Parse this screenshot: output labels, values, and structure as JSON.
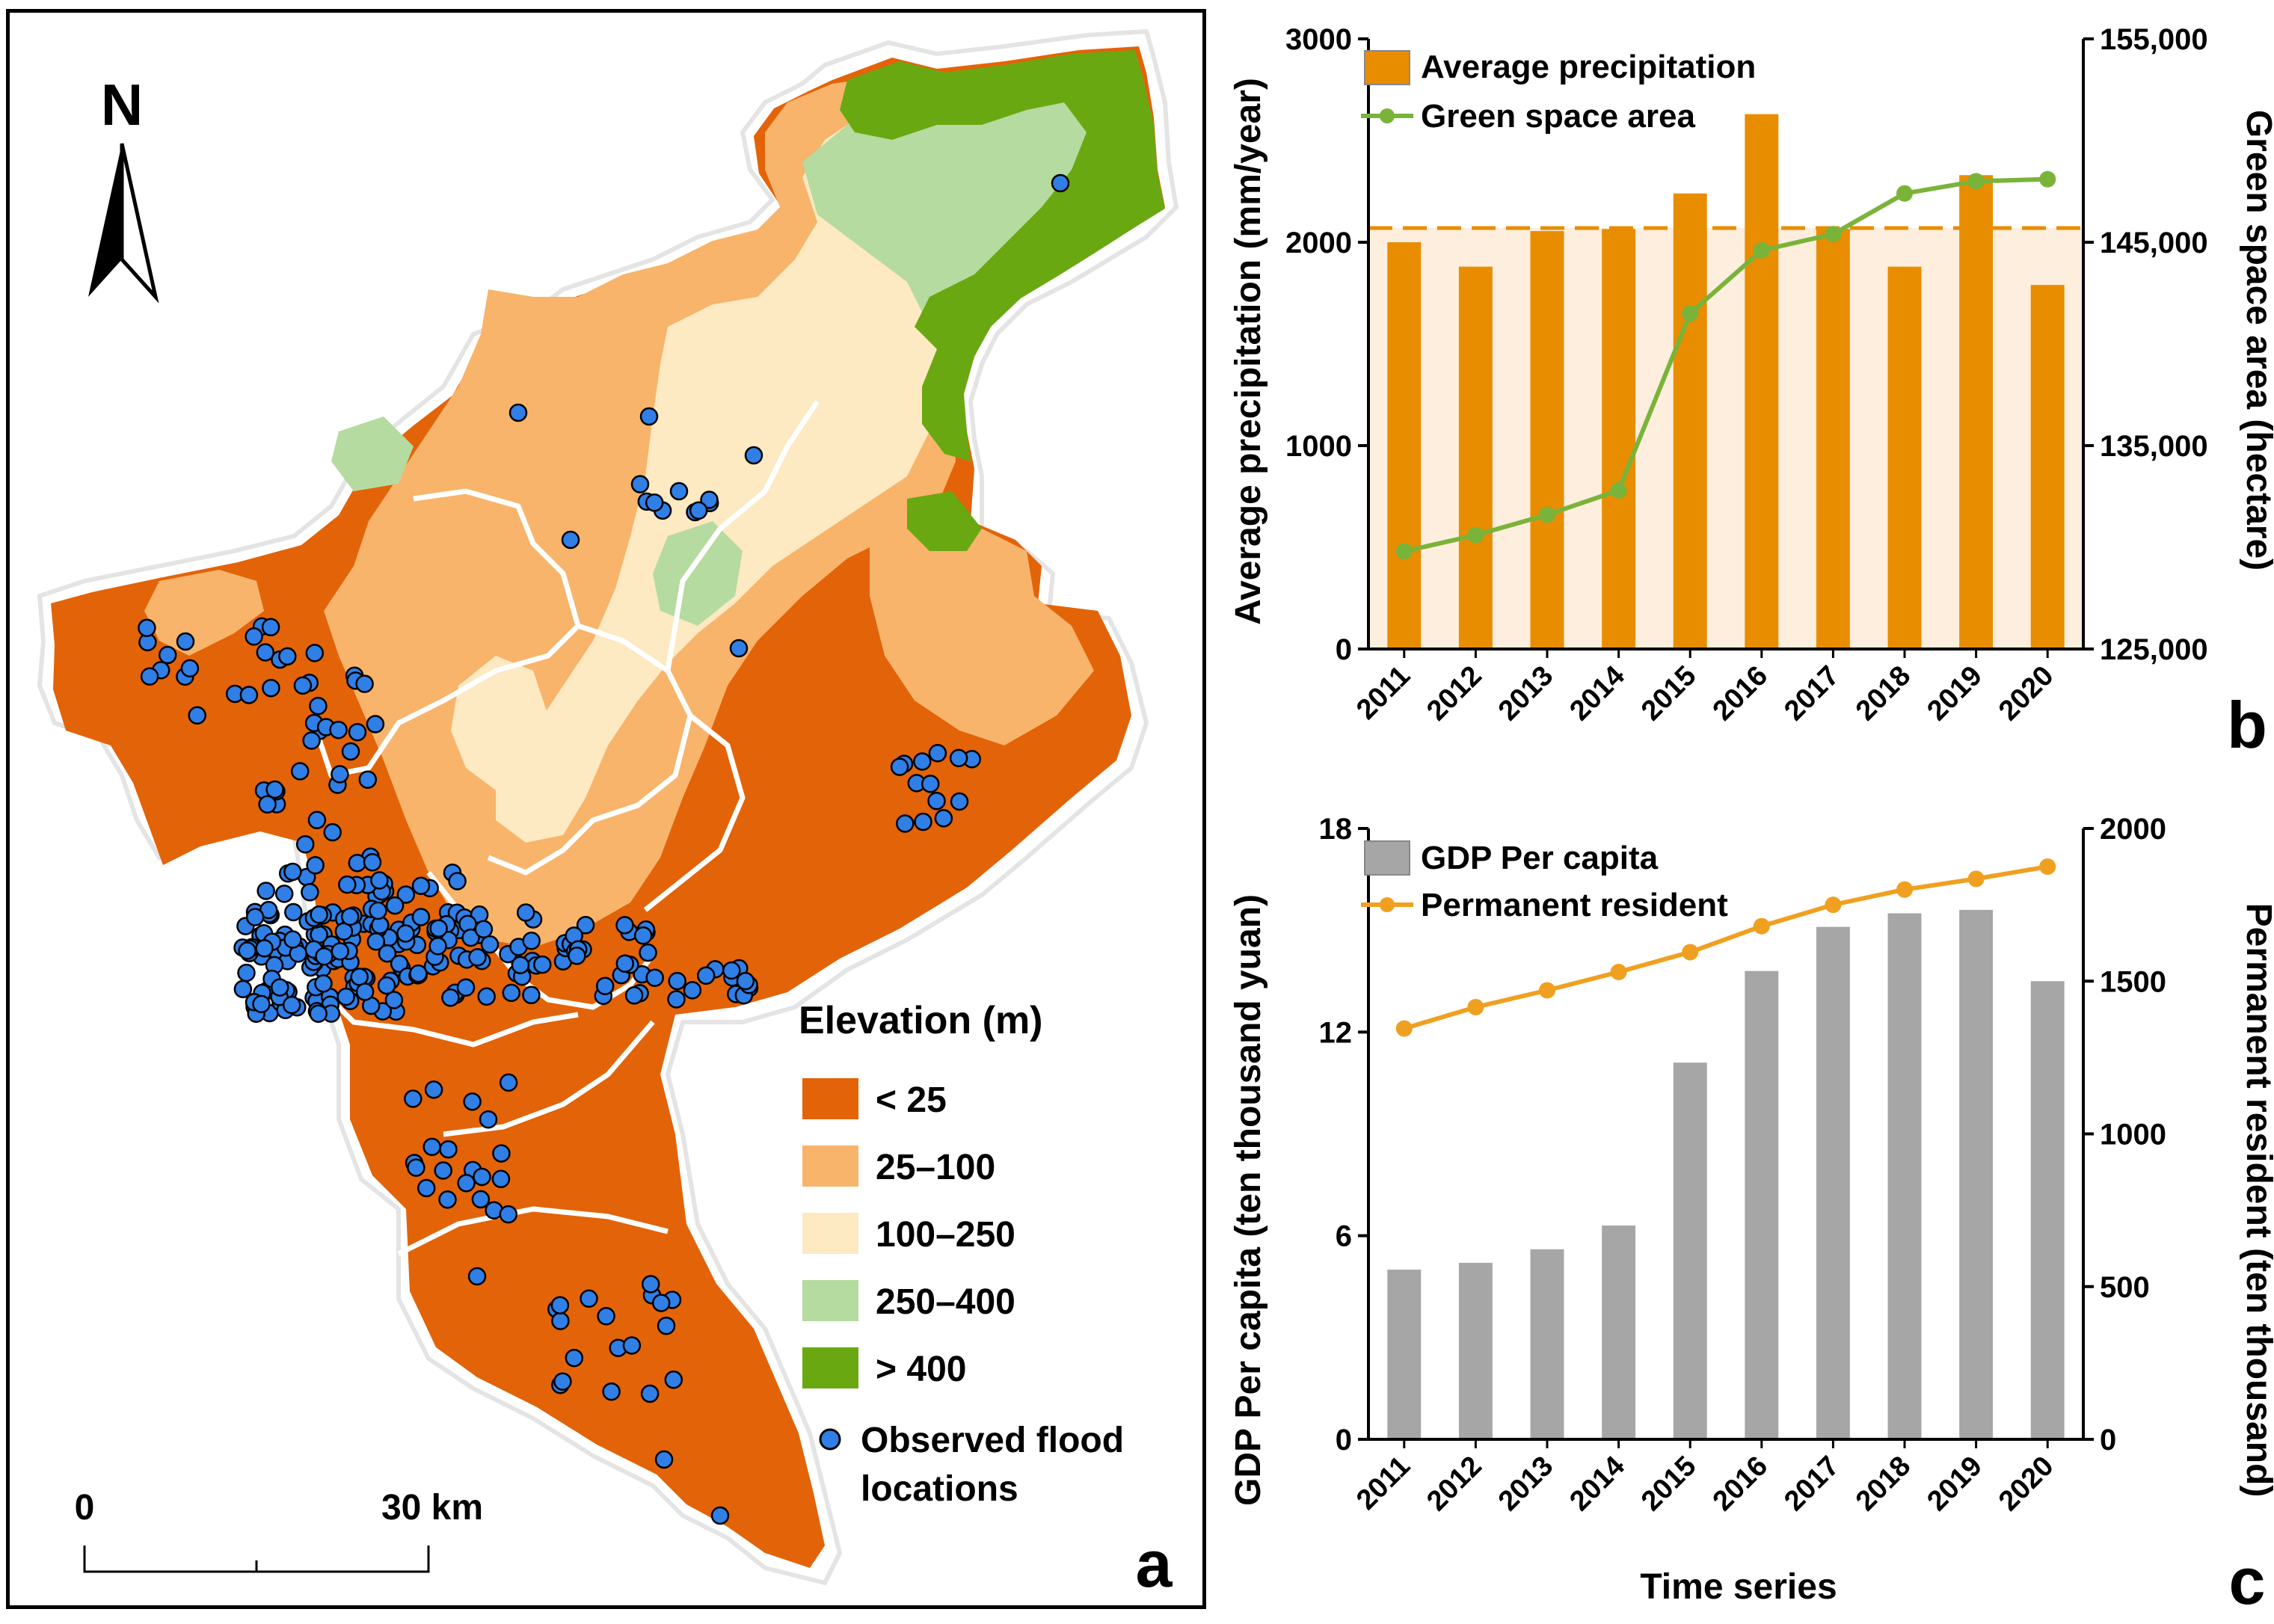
{
  "map": {
    "north_label": "N",
    "panel_label": "a",
    "legend": {
      "title": "Elevation (m)",
      "classes": [
        {
          "label": "< 25",
          "color": "#e36309"
        },
        {
          "label": "25–100",
          "color": "#f8b46a"
        },
        {
          "label": "100–250",
          "color": "#fde9c2"
        },
        {
          "label": "250–400",
          "color": "#b5dba0"
        },
        {
          "label": "> 400",
          "color": "#6aa812"
        }
      ],
      "flood_label_line1": "Observed flood",
      "flood_label_line2": "locations",
      "flood_color": "#2f7fe6"
    },
    "scale": {
      "start": "0",
      "end": "30 km"
    }
  },
  "chart_data": [
    {
      "type": "bar",
      "panel_label": "b",
      "categories": [
        "2011",
        "2012",
        "2013",
        "2014",
        "2015",
        "2016",
        "2017",
        "2018",
        "2019",
        "2020"
      ],
      "series": [
        {
          "name": "Average precipitation",
          "axis": "left",
          "kind": "bar",
          "color": "#e98d00",
          "values": [
            2000,
            1880,
            2055,
            2065,
            2240,
            2630,
            2065,
            1880,
            2330,
            1790
          ]
        },
        {
          "name": "Green space area",
          "axis": "right",
          "kind": "line",
          "color": "#7ab33a",
          "values": [
            129800,
            130600,
            131600,
            132800,
            141500,
            144600,
            145400,
            147400,
            148000,
            148100
          ]
        }
      ],
      "mean_line": 2070,
      "mean_color": "#e98d00",
      "shade_color": "#fdeedd",
      "ylabel": "Average precipitation (mm/year)",
      "ylabel_right": "Green space area (hectare)",
      "ylim": [
        0,
        3000
      ],
      "ylim_right": [
        125000,
        155000
      ],
      "yticks": [
        0,
        1000,
        2000,
        3000
      ],
      "yticks_right": [
        125000,
        135000,
        145000,
        155000
      ],
      "ytick_labels": [
        "0",
        "1000",
        "2000",
        "3000"
      ],
      "ytick_labels_right": [
        "125,000",
        "135,000",
        "145,000",
        "155,000"
      ],
      "legend_position": "top-left"
    },
    {
      "type": "bar",
      "panel_label": "c",
      "categories": [
        "2011",
        "2012",
        "2013",
        "2014",
        "2015",
        "2016",
        "2017",
        "2018",
        "2019",
        "2020"
      ],
      "series": [
        {
          "name": "GDP Per capita",
          "axis": "left",
          "kind": "bar",
          "color": "#a6a6a6",
          "values": [
            5.0,
            5.2,
            5.6,
            6.3,
            11.1,
            13.8,
            15.1,
            15.5,
            15.6,
            13.5
          ]
        },
        {
          "name": "Permanent resident",
          "axis": "right",
          "kind": "line",
          "color": "#f0a020",
          "values": [
            1345,
            1415,
            1470,
            1530,
            1595,
            1680,
            1750,
            1800,
            1835,
            1875
          ]
        }
      ],
      "xlabel": "Time series",
      "ylabel": "GDP Per capita (ten thousand yuan)",
      "ylabel_right": "Permanent resident (ten thousand)",
      "ylim": [
        0,
        18
      ],
      "ylim_right": [
        0,
        2000
      ],
      "yticks": [
        0,
        6,
        12,
        18
      ],
      "yticks_right": [
        0,
        500,
        1000,
        1500,
        2000
      ],
      "ytick_labels": [
        "0",
        "6",
        "12",
        "18"
      ],
      "ytick_labels_right": [
        "0",
        "500",
        "1000",
        "1500",
        "2000"
      ],
      "legend_position": "top-left"
    }
  ]
}
